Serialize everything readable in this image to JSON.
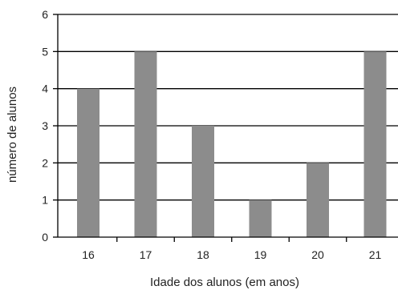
{
  "chart_data": {
    "type": "bar",
    "categories": [
      "16",
      "17",
      "18",
      "19",
      "20",
      "21"
    ],
    "values": [
      4,
      5,
      3,
      1,
      2,
      5
    ],
    "title": "",
    "xlabel": "Idade dos alunos (em anos)",
    "ylabel": "número de alunos",
    "ylim": [
      0,
      6
    ],
    "yticks": [
      "0",
      "1",
      "2",
      "3",
      "4",
      "5",
      "6"
    ],
    "grid": true,
    "legend": "none",
    "colors": {
      "bar": "#8c8c8c",
      "axis": "#000000",
      "grid": "#000000"
    }
  }
}
